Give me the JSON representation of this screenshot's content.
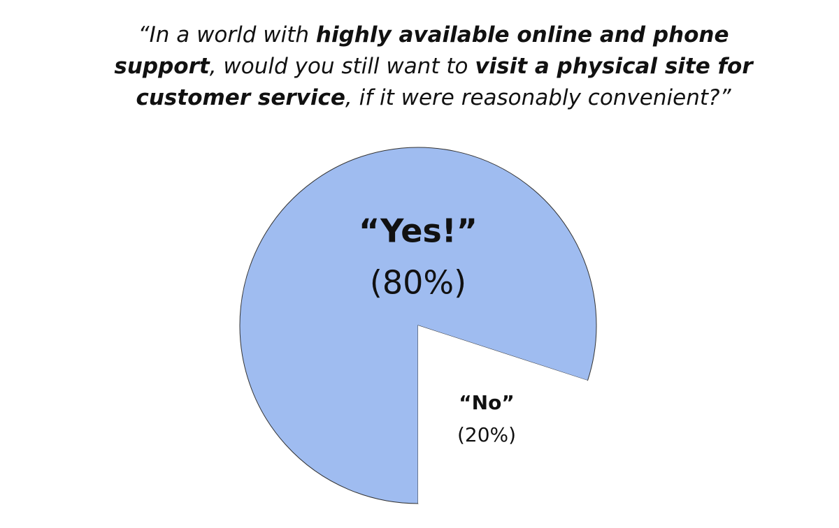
{
  "chart_data": {
    "type": "pie",
    "title": [
      {
        "text": "“In a world with ",
        "bold": false
      },
      {
        "text": "highly available online and phone",
        "bold": true
      },
      {
        "text": "support",
        "bold": true
      },
      {
        "text": ", would you still want to ",
        "bold": false
      },
      {
        "text": "visit a physical site for",
        "bold": true
      },
      {
        "text": "customer service",
        "bold": true
      },
      {
        "text": ", if it were reasonably convenient?”",
        "bold": false
      }
    ],
    "categories": [
      "“Yes!”",
      "“No”"
    ],
    "values": [
      80,
      20
    ],
    "value_labels": [
      "(80%)",
      "(20%)"
    ],
    "colors": [
      "#9fbcf0",
      "#ffffff"
    ]
  }
}
